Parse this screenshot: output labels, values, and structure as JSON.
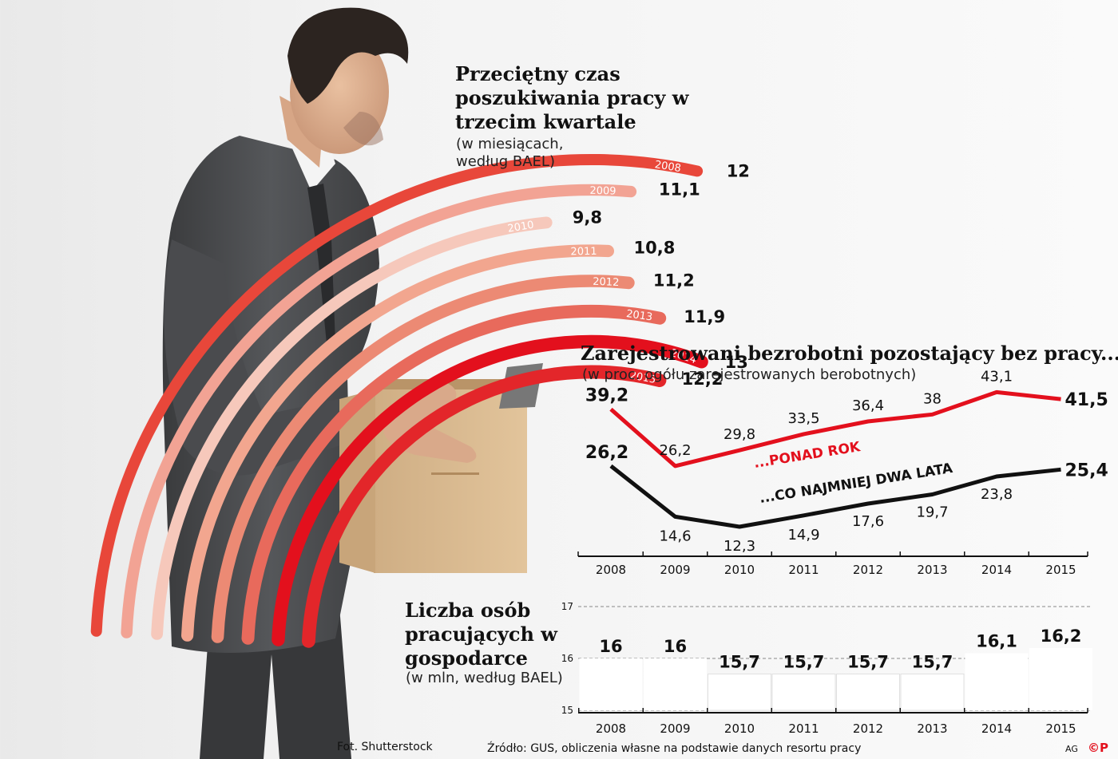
{
  "chart_data": [
    {
      "type": "bar",
      "title": "Przeciętny czas poszukiwania pracy w trzecim kwartale",
      "subtitle": "(w miesiącach, według BAEL)",
      "categories": [
        "2008",
        "2009",
        "2010",
        "2011",
        "2012",
        "2013",
        "2014",
        "2015"
      ],
      "values": [
        12,
        11.1,
        9.8,
        10.8,
        11.2,
        11.9,
        13,
        12.2
      ],
      "value_labels": [
        "12",
        "11,1",
        "9,8",
        "10,8",
        "11,2",
        "11,9",
        "13",
        "12,2"
      ],
      "colors": [
        "#e8473a",
        "#f2a394",
        "#f6c8bb",
        "#f2a68f",
        "#ec8a74",
        "#e86a5c",
        "#e3101d",
        "#e3262a"
      ]
    },
    {
      "type": "line",
      "title": "Zarejestrowani bezrobotni pozostający bez pracy...",
      "subtitle": "(w proc. ogółu zarejestrowanych berobotnych)",
      "x": [
        "2008",
        "2009",
        "2010",
        "2011",
        "2012",
        "2013",
        "2014",
        "2015"
      ],
      "ylim": [
        5,
        47
      ],
      "series": [
        {
          "name": "...PONAD ROK",
          "color": "#e3101d",
          "values": [
            39.2,
            26.2,
            29.8,
            33.5,
            36.4,
            38,
            43.1,
            41.5
          ],
          "labels": [
            "39,2",
            "26,2",
            "29,8",
            "33,5",
            "36,4",
            "38",
            "43,1",
            "41,5"
          ]
        },
        {
          "name": "...CO NAJMNIEJ DWA LATA",
          "color": "#111111",
          "values": [
            26.2,
            14.6,
            12.3,
            14.9,
            17.6,
            19.7,
            23.8,
            25.4
          ],
          "labels": [
            "26,2",
            "14,6",
            "12,3",
            "14,9",
            "17,6",
            "19,7",
            "23,8",
            "25,4"
          ]
        }
      ]
    },
    {
      "type": "bar",
      "title": "Liczba osób pracujących w gospodarce",
      "subtitle": "(w mln, według BAEL)",
      "categories": [
        "2008",
        "2009",
        "2010",
        "2011",
        "2012",
        "2013",
        "2014",
        "2015"
      ],
      "values": [
        16,
        16,
        15.7,
        15.7,
        15.7,
        15.7,
        16.1,
        16.2
      ],
      "value_labels": [
        "16",
        "16",
        "15,7",
        "15,7",
        "15,7",
        "15,7",
        "16,1",
        "16,2"
      ],
      "yticks": [
        "17",
        "16",
        "15"
      ],
      "ylim": [
        15,
        17
      ]
    }
  ],
  "footer": {
    "photo": "Fot. Shutterstock",
    "source": "Źródło: GUS, obliczenia własne na podstawie danych resortu pracy",
    "author": "AG",
    "logo": "©P"
  }
}
